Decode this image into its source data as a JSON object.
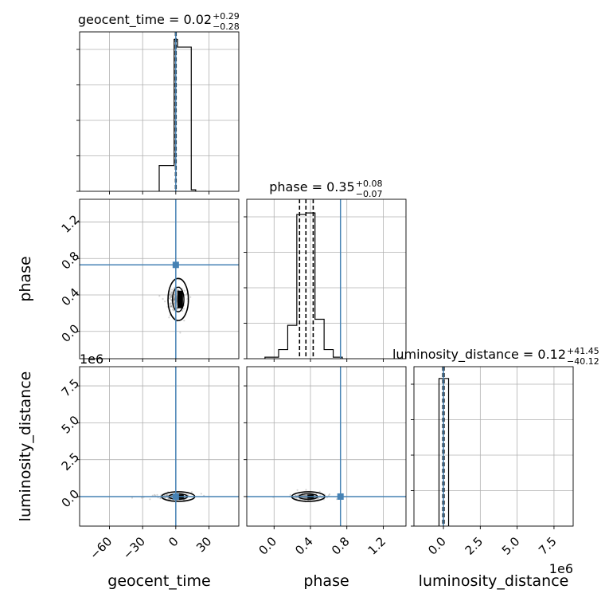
{
  "chart_data": {
    "type": "corner",
    "parameters": [
      "geocent_time",
      "phase",
      "luminosity_distance"
    ],
    "truths": {
      "geocent_time": 0,
      "phase": 0.73,
      "luminosity_distance": 0
    },
    "titles": [
      {
        "param": "geocent_time",
        "text": "geocent_time = 0.02",
        "upper": "+0.29",
        "lower": "−0.28"
      },
      {
        "param": "phase",
        "text": "phase = 0.35",
        "upper": "+0.08",
        "lower": "−0.07"
      },
      {
        "param": "luminosity_distance",
        "text": "luminosity_distance = 0.12",
        "upper": "+41.45",
        "lower": "−40.12"
      }
    ],
    "axes": {
      "geocent_time": {
        "label": "geocent_time",
        "lim": [
          -87,
          57
        ],
        "ticks": [
          -60,
          -30,
          0,
          30
        ],
        "tick_labels": [
          "−60",
          "−30",
          "0",
          "30"
        ]
      },
      "phase": {
        "label": "phase",
        "lim": [
          -0.3,
          1.45
        ],
        "ticks": [
          0.0,
          0.4,
          0.8,
          1.2
        ],
        "tick_labels": [
          "0.0",
          "0.4",
          "0.8",
          "1.2"
        ]
      },
      "luminosity_distance": {
        "label": "luminosity_distance",
        "lim": [
          -2000000,
          8800000
        ],
        "ticks": [
          0,
          2500000,
          5000000,
          7500000
        ],
        "tick_labels": [
          "0.0",
          "2.5",
          "5.0",
          "7.5"
        ],
        "offset_text": "1e6"
      }
    },
    "histograms": {
      "geocent_time": {
        "bins": [
          [
            -15,
            -1.5
          ],
          [
            -1.5,
            1.5
          ],
          [
            1.5,
            14
          ],
          [
            14,
            18
          ]
        ],
        "counts": [
          0.17,
          1.0,
          0.95,
          0.01
        ],
        "quantile_lines": [
          -0.26,
          0.02,
          0.31
        ],
        "ylim": [
          0,
          1.05
        ]
      },
      "phase": {
        "bins": [
          [
            -0.1,
            0.05
          ],
          [
            0.05,
            0.15
          ],
          [
            0.15,
            0.25
          ],
          [
            0.25,
            0.35
          ],
          [
            0.35,
            0.45
          ],
          [
            0.45,
            0.55
          ],
          [
            0.55,
            0.65
          ],
          [
            0.65,
            0.75
          ]
        ],
        "counts": [
          0.01,
          0.06,
          0.22,
          0.95,
          0.96,
          0.26,
          0.06,
          0.01
        ],
        "quantile_lines": [
          0.28,
          0.35,
          0.43
        ],
        "ylim": [
          0,
          1.05
        ]
      },
      "luminosity_distance": {
        "bins": [
          [
            -300000,
            0
          ],
          [
            0,
            350000
          ]
        ],
        "counts": [
          1.0,
          1.0
        ],
        "quantile_lines": [
          -40000,
          120,
          41570
        ],
        "ylim": [
          0,
          1.08
        ]
      }
    },
    "grid": true
  }
}
